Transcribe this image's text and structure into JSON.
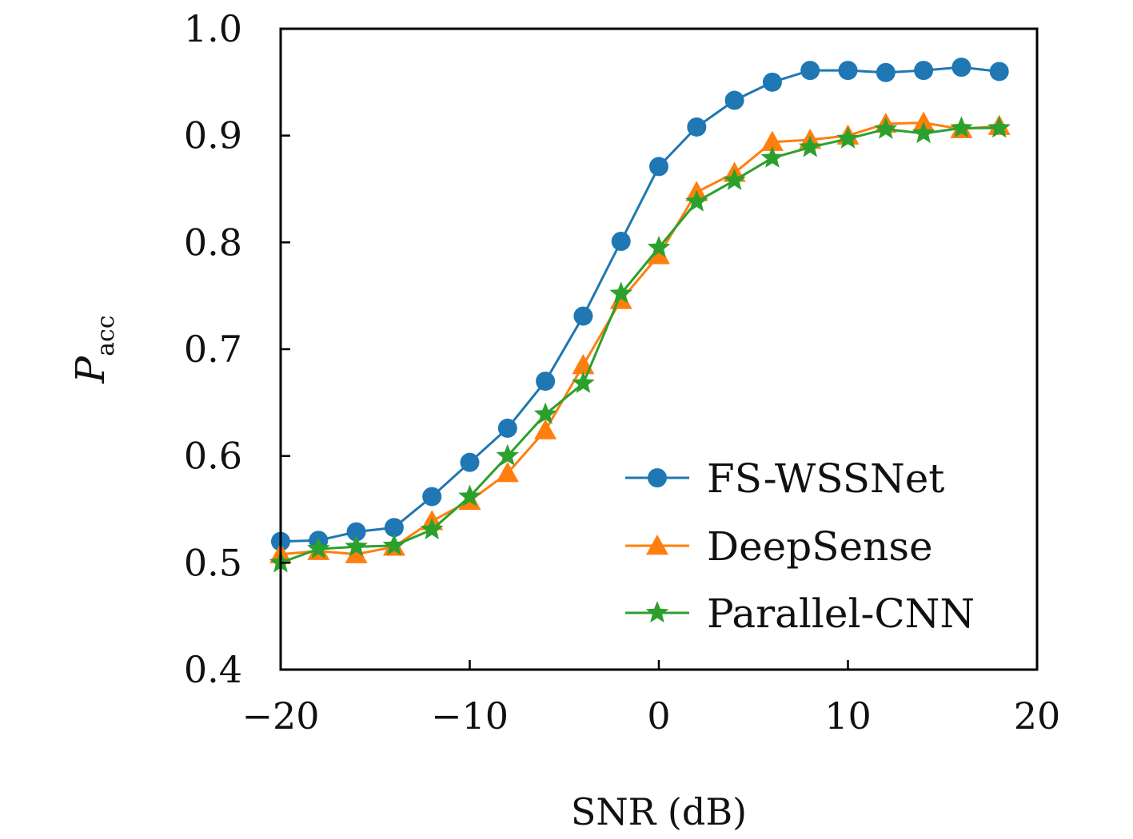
{
  "chart_data": {
    "type": "line",
    "title": "",
    "xlabel": "SNR (dB)",
    "ylabel": {
      "main": "P",
      "sub": "acc"
    },
    "xlim": [
      -20,
      20
    ],
    "ylim": [
      0.4,
      1.0
    ],
    "xticks": [
      -20,
      -10,
      0,
      10,
      20
    ],
    "xtick_labels": [
      "−20",
      "−10",
      "0",
      "10",
      "20"
    ],
    "yticks": [
      0.4,
      0.5,
      0.6,
      0.7,
      0.8,
      0.9,
      1.0
    ],
    "ytick_labels": [
      "0.4",
      "0.5",
      "0.6",
      "0.7",
      "0.8",
      "0.9",
      "1.0"
    ],
    "grid": false,
    "legend_position": "lower-right",
    "x": [
      -20,
      -18,
      -16,
      -14,
      -12,
      -10,
      -8,
      -6,
      -4,
      -2,
      0,
      2,
      4,
      6,
      8,
      10,
      12,
      14,
      16,
      18
    ],
    "series": [
      {
        "name": "FS-WSSNet",
        "marker": "circle",
        "color": "#1f77b4",
        "values": [
          0.52,
          0.521,
          0.529,
          0.533,
          0.562,
          0.594,
          0.626,
          0.67,
          0.731,
          0.801,
          0.871,
          0.908,
          0.933,
          0.95,
          0.961,
          0.961,
          0.959,
          0.961,
          0.964,
          0.96
        ]
      },
      {
        "name": "DeepSense",
        "marker": "triangle",
        "color": "#ff7f0e",
        "values": [
          0.508,
          0.511,
          0.508,
          0.515,
          0.539,
          0.558,
          0.584,
          0.624,
          0.685,
          0.746,
          0.788,
          0.847,
          0.865,
          0.894,
          0.896,
          0.9,
          0.911,
          0.912,
          0.906,
          0.909
        ]
      },
      {
        "name": "Parallel-CNN",
        "marker": "star",
        "color": "#2ca02c",
        "values": [
          0.5,
          0.513,
          0.515,
          0.516,
          0.531,
          0.562,
          0.6,
          0.639,
          0.668,
          0.752,
          0.795,
          0.838,
          0.858,
          0.879,
          0.889,
          0.897,
          0.906,
          0.902,
          0.907,
          0.907
        ]
      }
    ]
  }
}
